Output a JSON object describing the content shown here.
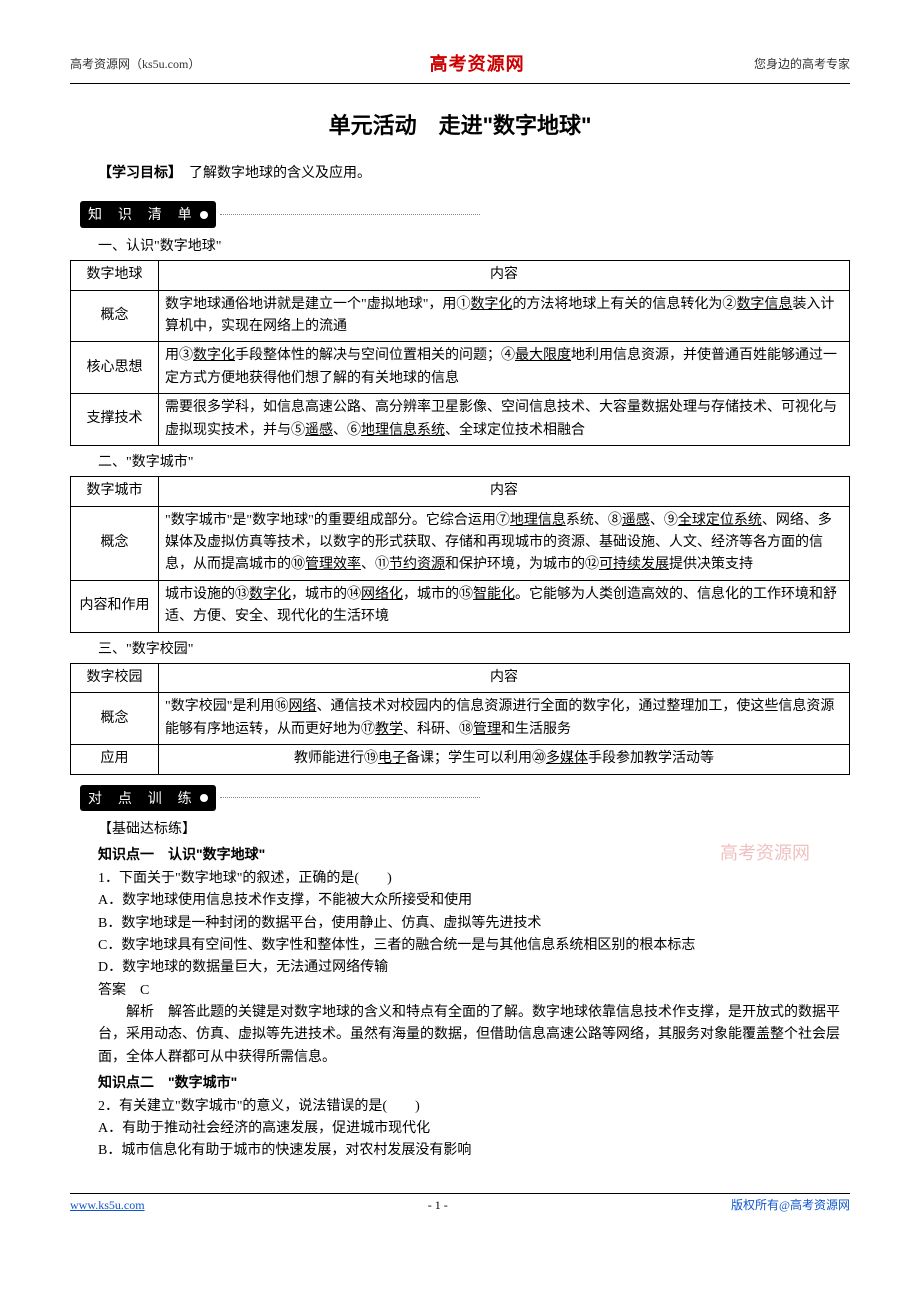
{
  "header": {
    "left": "高考资源网（ks5u.com）",
    "center": "高考资源网",
    "right": "您身边的高考专家"
  },
  "title": "单元活动　走进\"数字地球\"",
  "goal_label": "【学习目标】",
  "goal_text": "　了解数字地球的含义及应用。",
  "badge1": "知 识 清 单",
  "badge2": "对 点 训 练",
  "section1": {
    "heading": "一、认识\"数字地球\"",
    "col1": "数字地球",
    "col2": "内容",
    "row1_label": "概念",
    "row1_text": "数字地球通俗地讲就是建立一个\"虚拟地球\"，用①<u>数字化</u>的方法将地球上有关的信息转化为②<u>数字信息</u>装入计算机中，实现在网络上的流通",
    "row2_label": "核心思想",
    "row2_text": "用③<u>数字化</u>手段整体性的解决与空间位置相关的问题；④<u>最大限度</u>地利用信息资源，并使普通百姓能够通过一定方式方便地获得他们想了解的有关地球的信息",
    "row3_label": "支撑技术",
    "row3_text": "需要很多学科，如信息高速公路、高分辨率卫星影像、空间信息技术、大容量数据处理与存储技术、可视化与虚拟现实技术，并与⑤<u>遥感</u>、⑥<u>地理信息系统</u>、全球定位技术相融合"
  },
  "section2": {
    "heading": "二、\"数字城市\"",
    "col1": "数字城市",
    "col2": "内容",
    "row1_label": "概念",
    "row1_text": "\"数字城市\"是\"数字地球\"的重要组成部分。它综合运用⑦<u>地理信息</u>系统、⑧<u>遥感</u>、⑨<u>全球定位系统</u>、网络、多媒体及虚拟仿真等技术，以数字的形式获取、存储和再现城市的资源、基础设施、人文、经济等各方面的信息，从而提高城市的⑩<u>管理效率</u>、⑪<u>节约资源</u>和保护环境，为城市的⑫<u>可持续发展</u>提供决策支持",
    "row2_label": "内容和作用",
    "row2_text": "城市设施的⑬<u>数字化</u>，城市的⑭<u>网络化</u>，城市的⑮<u>智能化</u>。它能够为人类创造高效的、信息化的工作环境和舒适、方便、安全、现代化的生活环境"
  },
  "section3": {
    "heading": "三、\"数字校园\"",
    "col1": "数字校园",
    "col2": "内容",
    "row1_label": "概念",
    "row1_text": "\"数字校园\"是利用⑯<u>网络</u>、通信技术对校园内的信息资源进行全面的数字化，通过整理加工，使这些信息资源能够有序地运转，从而更好地为⑰<u>教学</u>、科研、⑱<u>管理</u>和生活服务",
    "row2_label": "应用",
    "row2_text": "教师能进行⑲<u>电子</u>备课；学生可以利用⑳<u>多媒体</u>手段参加教学活动等"
  },
  "practice": {
    "category": "【基础达标练】",
    "kp1_heading": "知识点一　认识\"数字地球\"",
    "q1": "1．下面关于\"数字地球\"的叙述，正确的是(　　)",
    "q1_optA": "A．数字地球使用信息技术作支撑，不能被大众所接受和使用",
    "q1_optB": "B．数字地球是一种封闭的数据平台，使用静止、仿真、虚拟等先进技术",
    "q1_optC": "C．数字地球具有空间性、数字性和整体性，三者的融合统一是与其他信息系统相区别的根本标志",
    "q1_optD": "D．数字地球的数据量巨大，无法通过网络传输",
    "q1_ans": "答案　C",
    "q1_exp": "解析　解答此题的关键是对数字地球的含义和特点有全面的了解。数字地球依靠信息技术作支撑，是开放式的数据平台，采用动态、仿真、虚拟等先进技术。虽然有海量的数据，但借助信息高速公路等网络，其服务对象能覆盖整个社会层面，全体人群都可从中获得所需信息。",
    "kp2_heading": "知识点二　\"数字城市\"",
    "q2": "2．有关建立\"数字城市\"的意义，说法错误的是(　　)",
    "q2_optA": "A．有助于推动社会经济的高速发展，促进城市现代化",
    "q2_optB": "B．城市信息化有助于城市的快速发展，对农村发展没有影响"
  },
  "watermark": "高考资源网",
  "footer": {
    "left": "www.ks5u.com",
    "center": "- 1 -",
    "right": "版权所有@高考资源网"
  },
  "colors": {
    "brand_red": "#cc0000",
    "link_blue": "#1155cc",
    "wm_pink": "#e9a6a6"
  }
}
